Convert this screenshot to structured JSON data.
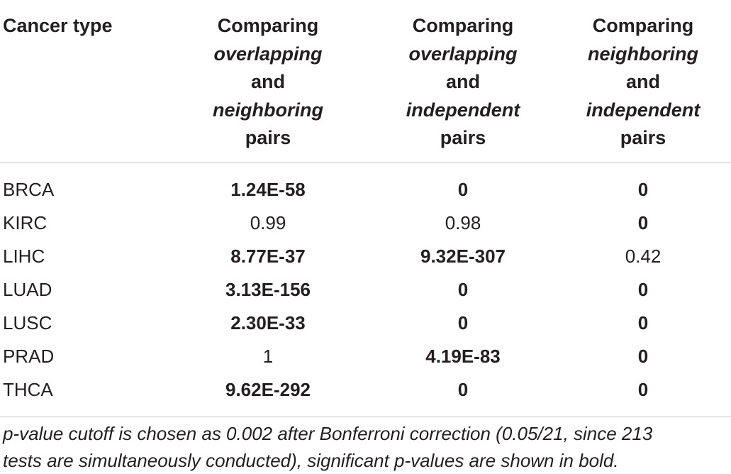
{
  "table": {
    "headers": [
      {
        "lines": [
          {
            "text": "Cancer type",
            "italic": false
          }
        ]
      },
      {
        "lines": [
          {
            "text": "Comparing",
            "italic": false
          },
          {
            "text": "overlapping",
            "italic": true
          },
          {
            "text": "and",
            "italic": false
          },
          {
            "text": "neighboring",
            "italic": true
          },
          {
            "text": "pairs",
            "italic": false
          }
        ]
      },
      {
        "lines": [
          {
            "text": "Comparing",
            "italic": false
          },
          {
            "text": "overlapping",
            "italic": true
          },
          {
            "text": "and",
            "italic": false
          },
          {
            "text": "independent",
            "italic": true
          },
          {
            "text": "pairs",
            "italic": false
          }
        ]
      },
      {
        "lines": [
          {
            "text": "Comparing",
            "italic": false
          },
          {
            "text": "neighboring",
            "italic": true
          },
          {
            "text": "and",
            "italic": false
          },
          {
            "text": "independent",
            "italic": true
          },
          {
            "text": "pairs",
            "italic": false
          }
        ]
      }
    ],
    "rows": [
      {
        "name": "BRCA",
        "values": [
          {
            "text": "1.24E-58",
            "significant": true
          },
          {
            "text": "0",
            "significant": true
          },
          {
            "text": "0",
            "significant": true
          }
        ]
      },
      {
        "name": "KIRC",
        "values": [
          {
            "text": "0.99",
            "significant": false
          },
          {
            "text": "0.98",
            "significant": false
          },
          {
            "text": "0",
            "significant": true
          }
        ]
      },
      {
        "name": "LIHC",
        "values": [
          {
            "text": "8.77E-37",
            "significant": true
          },
          {
            "text": "9.32E-307",
            "significant": true
          },
          {
            "text": "0.42",
            "significant": false
          }
        ]
      },
      {
        "name": "LUAD",
        "values": [
          {
            "text": "3.13E-156",
            "significant": true
          },
          {
            "text": "0",
            "significant": true
          },
          {
            "text": "0",
            "significant": true
          }
        ]
      },
      {
        "name": "LUSC",
        "values": [
          {
            "text": "2.30E-33",
            "significant": true
          },
          {
            "text": "0",
            "significant": true
          },
          {
            "text": "0",
            "significant": true
          }
        ]
      },
      {
        "name": "PRAD",
        "values": [
          {
            "text": "1",
            "significant": false
          },
          {
            "text": "4.19E-83",
            "significant": true
          },
          {
            "text": "0",
            "significant": true
          }
        ]
      },
      {
        "name": "THCA",
        "values": [
          {
            "text": "9.62E-292",
            "significant": true
          },
          {
            "text": "0",
            "significant": true
          },
          {
            "text": "0",
            "significant": true
          }
        ]
      }
    ]
  },
  "footnote": {
    "line1": "p-value cutoff is chosen as 0.002 after Bonferroni correction (0.05/21, since 213",
    "line2": "tests are simultaneously conducted), significant p-values are shown in bold."
  }
}
